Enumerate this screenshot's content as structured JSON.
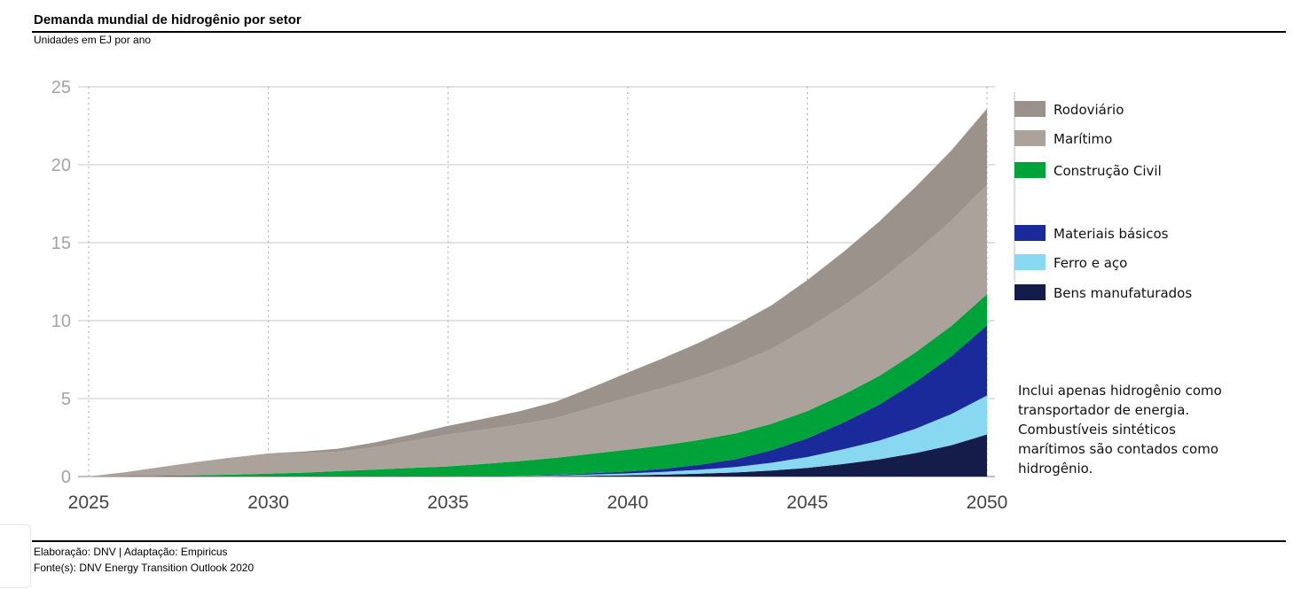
{
  "header": {
    "title": "Demanda mundial de hidrogênio por setor",
    "subtitle": "Unidades em EJ por ano"
  },
  "footer": {
    "credit": "Elaboração: DNV | Adaptação: Empiricus",
    "source": "Fonte(s): DNV Energy Transition Outlook 2020"
  },
  "note": {
    "lines": [
      "Inclui apenas hidrogênio como",
      "transportador de energia.",
      "Combustíveis sintéticos",
      "marítimos são contados como",
      "hidrogênio."
    ]
  },
  "chart_data": {
    "type": "area",
    "stacked": true,
    "title": "Demanda mundial de hidrogênio por setor",
    "ylabel": "Unidades em EJ por ano",
    "xlabel": "",
    "x": [
      2025,
      2026,
      2027,
      2028,
      2029,
      2030,
      2031,
      2032,
      2033,
      2034,
      2035,
      2036,
      2037,
      2038,
      2039,
      2040,
      2041,
      2042,
      2043,
      2044,
      2045,
      2046,
      2047,
      2048,
      2049,
      2050
    ],
    "xticks": [
      "2025",
      "2030",
      "2035",
      "2040",
      "2045",
      "2050"
    ],
    "yticks": [
      "0",
      "5",
      "10",
      "15",
      "20",
      "25"
    ],
    "xlim": [
      2025,
      2050
    ],
    "ylim": [
      0,
      25
    ],
    "grid": "horizontal solid, vertical dotted",
    "legend_position": "right",
    "series": [
      {
        "name": "Bens manufaturados",
        "color": "#141c4a",
        "values": [
          0,
          0,
          0,
          0,
          0,
          0,
          0,
          0,
          0,
          0,
          0,
          0,
          0,
          0.02,
          0.05,
          0.08,
          0.12,
          0.18,
          0.26,
          0.38,
          0.55,
          0.8,
          1.1,
          1.5,
          2.0,
          2.7
        ]
      },
      {
        "name": "Ferro e aço",
        "color": "#88d8f2",
        "values": [
          0,
          0,
          0,
          0,
          0,
          0,
          0,
          0,
          0,
          0,
          0,
          0,
          0.02,
          0.04,
          0.08,
          0.12,
          0.18,
          0.25,
          0.35,
          0.5,
          0.7,
          0.95,
          1.2,
          1.55,
          2.0,
          2.5
        ]
      },
      {
        "name": "Materiais básicos",
        "color": "#1a2a9a",
        "values": [
          0,
          0,
          0,
          0,
          0,
          0,
          0,
          0,
          0,
          0,
          0,
          0.01,
          0.02,
          0.04,
          0.08,
          0.12,
          0.2,
          0.32,
          0.5,
          0.8,
          1.2,
          1.7,
          2.3,
          3.0,
          3.7,
          4.5
        ]
      },
      {
        "name": "Construção Civil",
        "color": "#00a33a",
        "values": [
          0,
          0.02,
          0.05,
          0.08,
          0.12,
          0.18,
          0.25,
          0.35,
          0.45,
          0.55,
          0.65,
          0.8,
          0.95,
          1.1,
          1.25,
          1.4,
          1.5,
          1.6,
          1.65,
          1.7,
          1.75,
          1.8,
          1.85,
          1.9,
          1.95,
          2.0
        ]
      },
      {
        "name": "Marítimo",
        "color": "#aba39b",
        "values": [
          0,
          0.25,
          0.55,
          0.85,
          1.1,
          1.25,
          1.25,
          1.25,
          1.45,
          1.75,
          2.05,
          2.2,
          2.35,
          2.55,
          2.95,
          3.35,
          3.7,
          4.05,
          4.45,
          4.8,
          5.3,
          5.7,
          6.1,
          6.45,
          6.75,
          7.0
        ]
      },
      {
        "name": "Rodoviário",
        "color": "#9b928b",
        "values": [
          0,
          0,
          0,
          0,
          0,
          0.05,
          0.1,
          0.2,
          0.3,
          0.4,
          0.55,
          0.7,
          0.85,
          1.05,
          1.3,
          1.6,
          1.9,
          2.2,
          2.5,
          2.8,
          3.1,
          3.45,
          3.8,
          4.15,
          4.5,
          4.9
        ]
      }
    ],
    "legend_order": [
      "Rodoviário",
      "Marítimo",
      "Construção Civil",
      "Materiais básicos",
      "Ferro e aço",
      "Bens manufaturados"
    ]
  }
}
